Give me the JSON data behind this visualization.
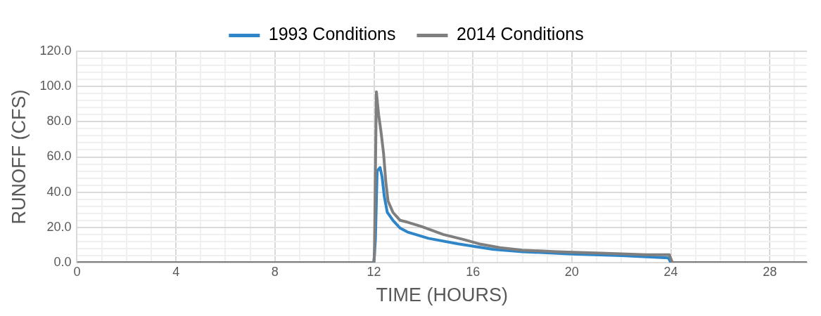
{
  "chart_data": {
    "type": "line",
    "xlabel": "TIME (HOURS)",
    "ylabel": "RUNOFF (CFS)",
    "xlim": [
      0,
      29.5
    ],
    "ylim": [
      0,
      120
    ],
    "xticks": [
      0,
      {
        "value": 1,
        "label": null
      },
      {
        "value": 2,
        "label": null
      },
      {
        "value": 3,
        "label": null
      },
      4,
      {
        "value": 5,
        "label": null
      },
      {
        "value": 6,
        "label": null
      },
      {
        "value": 7,
        "label": null
      },
      8,
      {
        "value": 9,
        "label": null
      },
      {
        "value": 10,
        "label": null
      },
      {
        "value": 11,
        "label": null
      },
      12,
      {
        "value": 13,
        "label": null
      },
      {
        "value": 14,
        "label": null
      },
      {
        "value": 15,
        "label": null
      },
      16,
      {
        "value": 17,
        "label": null
      },
      {
        "value": 18,
        "label": null
      },
      {
        "value": 19,
        "label": null
      },
      20,
      {
        "value": 21,
        "label": null
      },
      {
        "value": 22,
        "label": null
      },
      {
        "value": 23,
        "label": null
      },
      24,
      {
        "value": 25,
        "label": null
      },
      {
        "value": 26,
        "label": null
      },
      {
        "value": 27,
        "label": null
      },
      28,
      {
        "value": 29,
        "label": null
      }
    ],
    "yticks": [
      {
        "value": 0,
        "label": "0.0"
      },
      {
        "value": 4,
        "label": null
      },
      {
        "value": 8,
        "label": null
      },
      {
        "value": 12,
        "label": null
      },
      {
        "value": 16,
        "label": null
      },
      {
        "value": 20,
        "label": "20.0"
      },
      {
        "value": 24,
        "label": null
      },
      {
        "value": 28,
        "label": null
      },
      {
        "value": 32,
        "label": null
      },
      {
        "value": 36,
        "label": null
      },
      {
        "value": 40,
        "label": "40.0"
      },
      {
        "value": 44,
        "label": null
      },
      {
        "value": 48,
        "label": null
      },
      {
        "value": 52,
        "label": null
      },
      {
        "value": 56,
        "label": null
      },
      {
        "value": 60,
        "label": "60.0"
      },
      {
        "value": 64,
        "label": null
      },
      {
        "value": 68,
        "label": null
      },
      {
        "value": 72,
        "label": null
      },
      {
        "value": 76,
        "label": null
      },
      {
        "value": 80,
        "label": "80.0"
      },
      {
        "value": 84,
        "label": null
      },
      {
        "value": 88,
        "label": null
      },
      {
        "value": 92,
        "label": null
      },
      {
        "value": 96,
        "label": null
      },
      {
        "value": 100,
        "label": "100.0"
      },
      {
        "value": 104,
        "label": null
      },
      {
        "value": 108,
        "label": null
      },
      {
        "value": 112,
        "label": null
      },
      {
        "value": 116,
        "label": null
      },
      {
        "value": 120,
        "label": "120.0"
      }
    ],
    "grid": true,
    "legend": "top",
    "marker": "none",
    "line_style": "solid",
    "series": [
      {
        "name": "1993 Conditions",
        "color": "#2e86c8",
        "x": [
          12.0,
          12.06,
          12.13,
          12.25,
          12.33,
          12.42,
          12.54,
          12.77,
          13.06,
          13.35,
          14.2,
          15.4,
          16.8,
          18.0,
          20.0,
          22.0,
          23.9,
          24.0,
          29.5
        ],
        "values": [
          0,
          13,
          52,
          54,
          48.7,
          37.5,
          28.6,
          24,
          19.6,
          17.4,
          13.8,
          10.7,
          7.6,
          6.2,
          4.9,
          4.0,
          2.7,
          0,
          0
        ]
      },
      {
        "name": "2014 Conditions",
        "color": "#7f7f7f",
        "x": [
          0,
          11.99,
          12.02,
          12.1,
          12.19,
          12.28,
          12.39,
          12.48,
          12.57,
          12.77,
          13.06,
          13.35,
          13.93,
          14.8,
          15.66,
          16.24,
          17.1,
          18.0,
          19.4,
          21.2,
          23.0,
          23.94,
          24.06,
          29.5
        ],
        "values": [
          0,
          0,
          4,
          97,
          84,
          75,
          62,
          46,
          35,
          28.5,
          24,
          23,
          20.5,
          16,
          13,
          10.7,
          8.5,
          7.1,
          6.2,
          5.4,
          4.5,
          4.5,
          0,
          0
        ]
      }
    ]
  }
}
